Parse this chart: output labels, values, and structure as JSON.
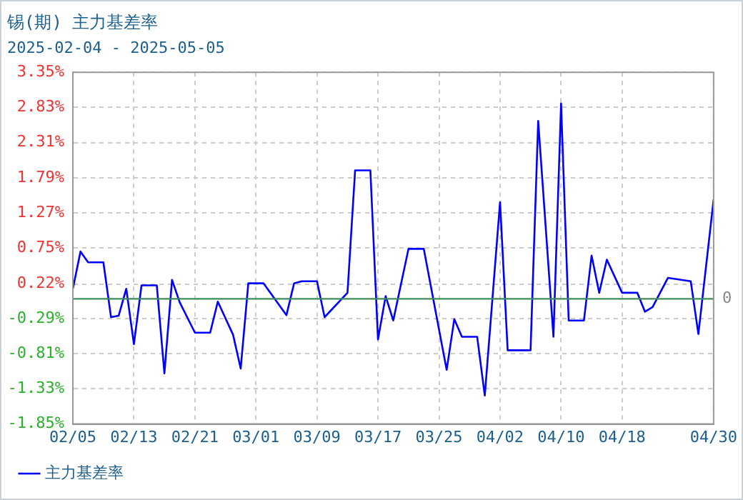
{
  "chart_data": {
    "type": "line",
    "title": "锡(期) 主力基差率",
    "subtitle": "2025-02-04 - 2025-05-05",
    "x": [
      "2025-02-05",
      "2025-02-06",
      "2025-02-07",
      "2025-02-09",
      "2025-02-10",
      "2025-02-11",
      "2025-02-12",
      "2025-02-13",
      "2025-02-14",
      "2025-02-16",
      "2025-02-17",
      "2025-02-18",
      "2025-02-19",
      "2025-02-21",
      "2025-02-23",
      "2025-02-24",
      "2025-02-26",
      "2025-02-27",
      "2025-02-28",
      "2025-03-02",
      "2025-03-05",
      "2025-03-06",
      "2025-03-07",
      "2025-03-09",
      "2025-03-10",
      "2025-03-13",
      "2025-03-14",
      "2025-03-16",
      "2025-03-17",
      "2025-03-18",
      "2025-03-19",
      "2025-03-21",
      "2025-03-23",
      "2025-03-26",
      "2025-03-27",
      "2025-03-28",
      "2025-03-30",
      "2025-03-31",
      "2025-04-02",
      "2025-04-03",
      "2025-04-06",
      "2025-04-07",
      "2025-04-09",
      "2025-04-10",
      "2025-04-11",
      "2025-04-13",
      "2025-04-14",
      "2025-04-15",
      "2025-04-16",
      "2025-04-18",
      "2025-04-20",
      "2025-04-21",
      "2025-04-22",
      "2025-04-24",
      "2025-04-27",
      "2025-04-28",
      "2025-04-30"
    ],
    "series": [
      {
        "name": "主力基差率",
        "color": "#0000ff",
        "values": [
          0.15,
          0.7,
          0.54,
          0.54,
          -0.27,
          -0.25,
          0.15,
          -0.67,
          0.2,
          0.2,
          -1.1,
          0.28,
          -0.05,
          -0.5,
          -0.5,
          -0.04,
          -0.53,
          -1.03,
          0.23,
          0.23,
          -0.24,
          0.23,
          0.26,
          0.26,
          -0.27,
          0.09,
          1.9,
          1.9,
          -0.6,
          0.04,
          -0.32,
          0.74,
          0.74,
          -1.05,
          -0.3,
          -0.56,
          -0.56,
          -1.43,
          1.43,
          -0.76,
          -0.76,
          2.63,
          -0.56,
          2.89,
          -0.32,
          -0.32,
          0.64,
          0.09,
          0.58,
          0.09,
          0.09,
          -0.19,
          -0.12,
          0.31,
          0.26,
          -0.52,
          1.47
        ]
      }
    ],
    "xlim": [
      "2025-02-05",
      "2025-04-30"
    ],
    "xticks": [
      {
        "value": "2025-02-05",
        "label": "02/05"
      },
      {
        "value": "2025-02-13",
        "label": "02/13"
      },
      {
        "value": "2025-02-21",
        "label": "02/21"
      },
      {
        "value": "2025-03-01",
        "label": "03/01"
      },
      {
        "value": "2025-03-09",
        "label": "03/09"
      },
      {
        "value": "2025-03-17",
        "label": "03/17"
      },
      {
        "value": "2025-03-25",
        "label": "03/25"
      },
      {
        "value": "2025-04-02",
        "label": "04/02"
      },
      {
        "value": "2025-04-10",
        "label": "04/10"
      },
      {
        "value": "2025-04-18",
        "label": "04/18"
      },
      {
        "value": "2025-04-30",
        "label": "04/30"
      }
    ],
    "ylim": [
      -1.85,
      3.35
    ],
    "yticks": [
      {
        "value": -1.85,
        "label": "-1.85%"
      },
      {
        "value": -1.33,
        "label": "-1.33%"
      },
      {
        "value": -0.81,
        "label": "-0.81%"
      },
      {
        "value": -0.29,
        "label": "-0.29%"
      },
      {
        "value": 0.22,
        "label": "0.22%"
      },
      {
        "value": 0.75,
        "label": "0.75%"
      },
      {
        "value": 1.27,
        "label": "1.27%"
      },
      {
        "value": 1.79,
        "label": "1.79%"
      },
      {
        "value": 2.31,
        "label": "2.31%"
      },
      {
        "value": 2.83,
        "label": "2.83%"
      },
      {
        "value": 3.35,
        "label": "3.35%"
      }
    ],
    "ref_lines": [
      {
        "axis": "y",
        "value": 0,
        "label": "0",
        "color": "#3c8c5a"
      }
    ],
    "grid": true,
    "legend": "bottom left",
    "marker": "none",
    "line_style": "solid"
  }
}
